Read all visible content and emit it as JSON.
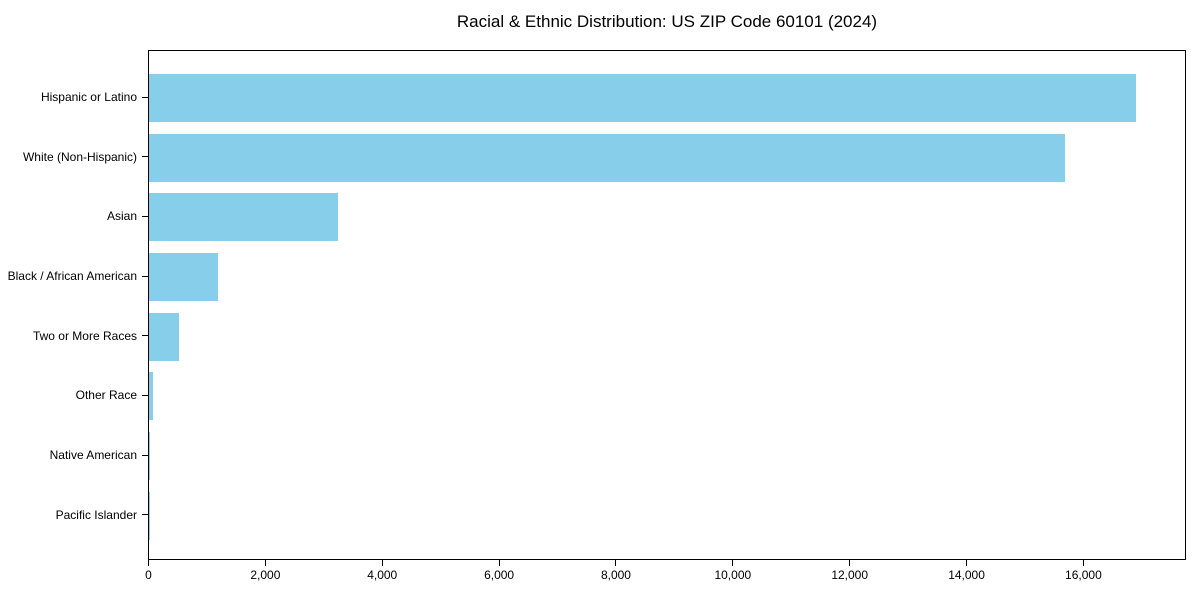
{
  "chart_data": {
    "type": "bar",
    "orientation": "horizontal",
    "title": "Racial & Ethnic Distribution: US ZIP Code 60101 (2024)",
    "categories": [
      "Hispanic or Latino",
      "White (Non-Hispanic)",
      "Asian",
      "Black / African American",
      "Two or More Races",
      "Other Race",
      "Native American",
      "Pacific Islander"
    ],
    "values": [
      16890,
      15670,
      3230,
      1180,
      505,
      70,
      15,
      5
    ],
    "xlabel": "",
    "ylabel": "",
    "xlim": [
      0,
      17730
    ],
    "x_ticks": [
      0,
      2000,
      4000,
      6000,
      8000,
      10000,
      12000,
      14000,
      16000
    ],
    "x_tick_labels": [
      "0",
      "2,000",
      "4,000",
      "6,000",
      "8,000",
      "10,000",
      "12,000",
      "14,000",
      "16,000"
    ],
    "grid": false,
    "legend": "none",
    "bar_color": "#87CEEB",
    "background_color": "#FFFFFF",
    "axis_color": "#000000",
    "text_color": "#000000"
  }
}
